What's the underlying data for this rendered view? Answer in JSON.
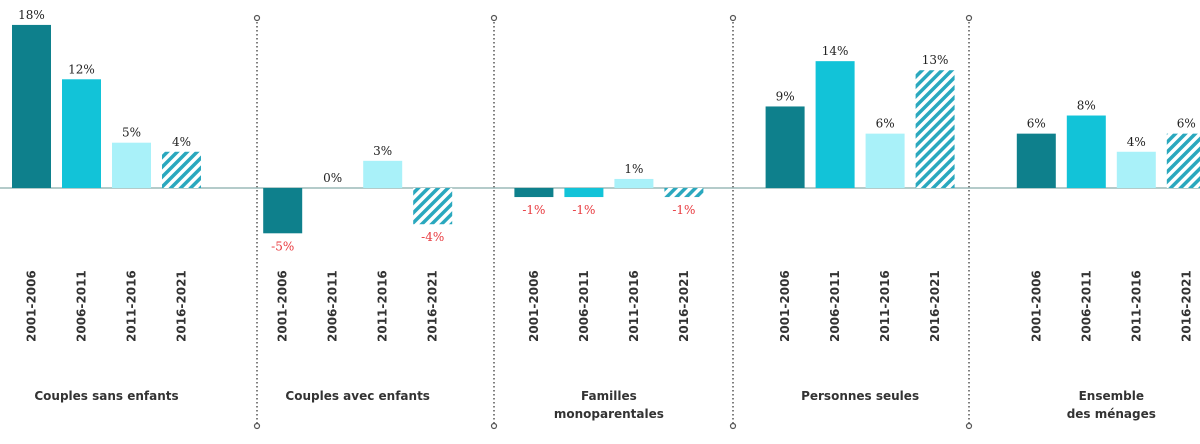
{
  "chart_data": {
    "type": "bar",
    "categories": [
      "Couples sans enfants",
      "Couples avec enfants",
      "Familles monoparentales",
      "Personnes seules",
      "Ensemble des ménages"
    ],
    "series": [
      {
        "name": "2001-2006",
        "color": "#0e808c",
        "values": [
          18,
          -5,
          -1,
          9,
          6
        ],
        "value_labels": [
          "18%",
          "-5%",
          "-1%",
          "9%",
          "6%"
        ]
      },
      {
        "name": "2006-2011",
        "color": "#12c3d8",
        "values": [
          12,
          0,
          -1,
          14,
          8
        ],
        "value_labels": [
          "12%",
          "0%",
          "-1%",
          "14%",
          "8%"
        ]
      },
      {
        "name": "2011-2016",
        "color": "#a9f1f9",
        "values": [
          5,
          3,
          1,
          6,
          4
        ],
        "value_labels": [
          "5%",
          "3%",
          "1%",
          "6%",
          "4%"
        ]
      },
      {
        "name": "2016-2021",
        "color": "#2aa8be",
        "hatched": true,
        "values": [
          4,
          -4,
          -1,
          13,
          6
        ],
        "value_labels": [
          "4%",
          "-4%",
          "-1%",
          "13%",
          "6%"
        ]
      }
    ]
  }
}
